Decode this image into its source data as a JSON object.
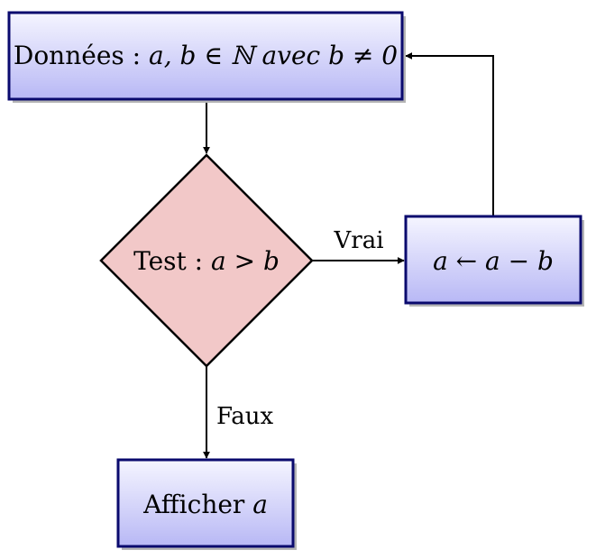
{
  "nodes": {
    "input": {
      "text": "Données : ",
      "math": "a, b ∈ ℕ avec b ≠ 0"
    },
    "test": {
      "text": "Test : ",
      "math": "a > b"
    },
    "update": {
      "math": "a ← a − b"
    },
    "output": {
      "text": "Afficher ",
      "math": "a"
    }
  },
  "edges": {
    "true_label": "Vrai",
    "false_label": "Faux"
  },
  "colors": {
    "box_border": "#0a0a6e",
    "box_fill_top": "#f5f5ff",
    "box_fill_bottom": "#b8b8f5",
    "diamond_fill": "#f2c8c8",
    "stroke": "#000000",
    "shadow": "#b5b5b5"
  }
}
